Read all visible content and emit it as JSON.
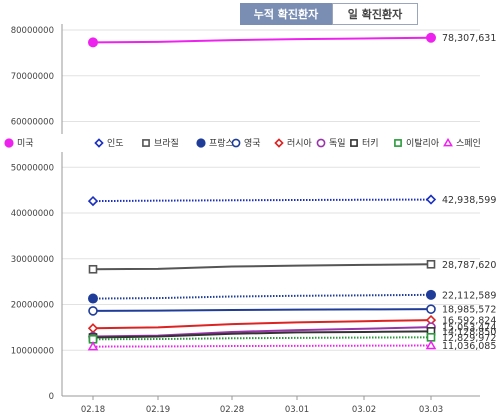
{
  "tabs": [
    {
      "label": "누적 확진환자",
      "active": true
    },
    {
      "label": "일 확진환자",
      "active": false
    }
  ],
  "chart_data": {
    "type": "line",
    "categories": [
      "02.18",
      "02.19",
      "02.28",
      "03.01",
      "03.02",
      "03.03"
    ],
    "ylim": [
      0,
      80000000
    ],
    "yticks": [
      0,
      10000000,
      20000000,
      30000000,
      40000000,
      50000000,
      60000000,
      70000000,
      80000000
    ],
    "ytick_labels": [
      "0",
      "10000000",
      "20000000",
      "30000000",
      "40000000",
      "50000000",
      "60000000",
      "70000000",
      "80000000"
    ],
    "legend_position": "middle",
    "series": [
      {
        "name": "미국",
        "color": "#ee22ee",
        "marker": "filled-circle",
        "dash": "solid",
        "values": [
          77300000,
          77400000,
          77800000,
          78000000,
          78150000,
          78307631
        ],
        "end_label": "78,307,631"
      },
      {
        "name": "인도",
        "color": "#1a2fbf",
        "marker": "diamond",
        "dash": "dotted",
        "values": [
          42600000,
          42700000,
          42780000,
          42840000,
          42890000,
          42938599
        ],
        "end_label": "42,938,599"
      },
      {
        "name": "브라질",
        "color": "#555555",
        "marker": "square",
        "dash": "solid",
        "values": [
          27700000,
          27800000,
          28300000,
          28500000,
          28650000,
          28787620
        ],
        "end_label": "28,787,620"
      },
      {
        "name": "프랑스",
        "color": "#1f3c99",
        "marker": "filled-circle",
        "dash": "dotted",
        "values": [
          21300000,
          21400000,
          21750000,
          21900000,
          22000000,
          22112589
        ],
        "end_label": "22,112,589"
      },
      {
        "name": "영국",
        "color": "#1f3c99",
        "marker": "open-circle",
        "dash": "solid",
        "values": [
          18600000,
          18650000,
          18800000,
          18880000,
          18930000,
          18985572
        ],
        "end_label": "18,985,572"
      },
      {
        "name": "러시아",
        "color": "#dd2222",
        "marker": "diamond",
        "dash": "solid",
        "values": [
          14800000,
          15000000,
          15700000,
          16100000,
          16350000,
          16592824
        ],
        "end_label": "16,592,824"
      },
      {
        "name": "독일",
        "color": "#9933aa",
        "marker": "open-circle",
        "dash": "solid",
        "values": [
          13000000,
          13200000,
          14000000,
          14400000,
          14700000,
          15053474
        ],
        "end_label": "15,053,474"
      },
      {
        "name": "터키",
        "color": "#333333",
        "marker": "square",
        "dash": "solid",
        "values": [
          12800000,
          13000000,
          13600000,
          13900000,
          14000000,
          14128850
        ],
        "end_label": "14,128,850"
      },
      {
        "name": "이탈리아",
        "color": "#2a9a3a",
        "marker": "square-open",
        "dash": "dotted",
        "values": [
          12400000,
          12450000,
          12620000,
          12700000,
          12770000,
          12829972
        ],
        "end_label": "12,829,972"
      },
      {
        "name": "스페인",
        "color": "#ee22ee",
        "marker": "triangle",
        "dash": "dotted",
        "values": [
          10800000,
          10830000,
          10920000,
          10960000,
          11000000,
          11036085
        ],
        "end_label": "11,036,085"
      }
    ]
  }
}
